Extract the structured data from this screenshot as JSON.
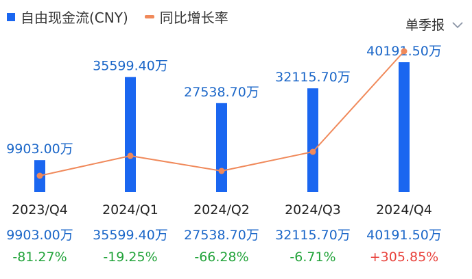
{
  "legend": {
    "bar_label": "自由现金流(CNY)",
    "line_label": "同比增长率"
  },
  "period_select": {
    "value": "单季报",
    "icon": "chevron-down-icon"
  },
  "colors": {
    "bar": "#1a66f0",
    "line": "#f0895a",
    "value_text": "#1a66c8",
    "negative": "#22a33a",
    "positive": "#e8423c"
  },
  "chart_data": {
    "type": "bar",
    "title": "",
    "xlabel": "",
    "ylabel": "",
    "categories": [
      "2023/Q4",
      "2024/Q1",
      "2024/Q2",
      "2024/Q3",
      "2024/Q4"
    ],
    "series": [
      {
        "name": "自由现金流(CNY)",
        "type": "bar",
        "values": [
          9903.0,
          35599.4,
          27538.7,
          32115.7,
          40191.5
        ],
        "labels": [
          "9903.00万",
          "35599.40万",
          "27538.70万",
          "32115.70万",
          "40191.50万"
        ]
      },
      {
        "name": "同比增长率",
        "type": "line",
        "values": [
          -81.27,
          -19.25,
          -66.28,
          -6.71,
          305.85
        ],
        "labels": [
          "-81.27%",
          "-19.25%",
          "-66.28%",
          "-6.71%",
          "+305.85%"
        ]
      }
    ],
    "legend_position": "top-left",
    "grid": false
  }
}
